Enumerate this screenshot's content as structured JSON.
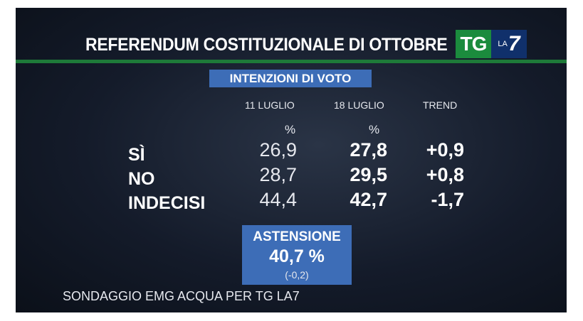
{
  "header": {
    "title": "REFERENDUM COSTITUZIONALE DI OTTOBRE",
    "logo_tg": "TG",
    "logo_la": "LA",
    "logo_seven": "7"
  },
  "subtitle": "INTENZIONI DI VOTO",
  "columns": {
    "col1": "11 LUGLIO",
    "col2": "18 LUGLIO",
    "col3": "TREND",
    "pct1": "%",
    "pct2": "%"
  },
  "rows": [
    {
      "label": "SÌ",
      "v1": "26,9",
      "v2": "27,8",
      "trend": "+0,9"
    },
    {
      "label": "NO",
      "v1": "28,7",
      "v2": "29,5",
      "trend": "+0,8"
    },
    {
      "label": "INDECISI",
      "v1": "44,4",
      "v2": "42,7",
      "trend": "-1,7"
    }
  ],
  "astensione": {
    "label": "ASTENSIONE",
    "value": "40,7 %",
    "delta": "(-0,2)"
  },
  "source": "SONDAGGIO EMG ACQUA PER TG LA7",
  "colors": {
    "green": "#1e7a39",
    "blue_box": "#3d6db7",
    "logo_blue": "#10306b"
  }
}
